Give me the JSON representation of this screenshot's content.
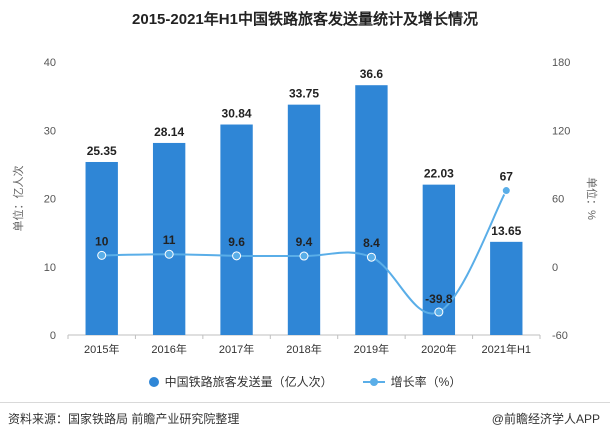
{
  "title": "2015-2021年H1中国铁路旅客发送量统计及增长情况",
  "footer": {
    "source": "资料来源：国家铁路局 前瞻产业研究院整理",
    "brand": "@前瞻经济学人APP"
  },
  "colors": {
    "bar": "#2f86d6",
    "line": "#5aaee8",
    "axis": "#888888",
    "text": "#333333"
  },
  "chart_data": {
    "type": "bar",
    "title": "2015-2021年H1中国铁路旅客发送量统计及增长情况",
    "categories": [
      "2015年",
      "2016年",
      "2017年",
      "2018年",
      "2019年",
      "2020年",
      "2021年H1"
    ],
    "y_left": {
      "label": "单位：亿人次",
      "min": 0,
      "max": 40,
      "ticks": [
        0,
        10,
        20,
        30,
        40
      ]
    },
    "y_right": {
      "label": "单位：%",
      "min": -60,
      "max": 180,
      "ticks": [
        -60,
        0,
        60,
        120,
        180
      ]
    },
    "series": [
      {
        "name": "中国铁路旅客发送量（亿人次）",
        "type": "bar",
        "axis": "left",
        "values": [
          25.35,
          28.14,
          30.84,
          33.75,
          36.6,
          22.03,
          13.65
        ],
        "labels": [
          "25.35",
          "28.14",
          "30.84",
          "33.75",
          "36.6",
          "22.03",
          "13.65"
        ]
      },
      {
        "name": "增长率（%）",
        "type": "line",
        "axis": "right",
        "values": [
          10,
          11,
          9.6,
          9.4,
          8.4,
          -39.8,
          67
        ],
        "labels": [
          "10",
          "11",
          "9.6",
          "9.4",
          "8.4",
          "-39.8",
          "67"
        ]
      }
    ],
    "legend_position": "bottom",
    "grid": false
  }
}
